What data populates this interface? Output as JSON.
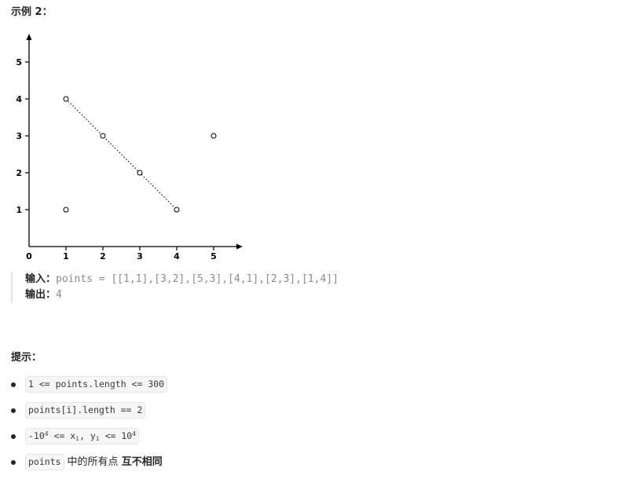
{
  "example": {
    "title": "示例 2：",
    "input_label": "输入：",
    "input_value": "points = [[1,1],[3,2],[5,3],[4,1],[2,3],[1,4]]",
    "output_label": "输出：",
    "output_value": "4"
  },
  "hints": {
    "title": "提示：",
    "items": [
      {
        "code": "1 <= points.length <= 300"
      },
      {
        "code": "points[i].length == 2"
      },
      {
        "code_parts": [
          "-10",
          "4",
          " <= x",
          "i",
          ", y",
          "i",
          " <= 10",
          "4"
        ]
      },
      {
        "code": "points",
        "text": "中的所有点",
        "strong": "互不相同"
      }
    ]
  },
  "chart_data": {
    "type": "scatter",
    "title": "",
    "xlabel": "",
    "ylabel": "",
    "xlim": [
      0,
      5.5
    ],
    "ylim": [
      0,
      5.5
    ],
    "x_ticks": [
      "0",
      "1",
      "2",
      "3",
      "4",
      "5"
    ],
    "y_ticks": [
      "1",
      "2",
      "3",
      "4",
      "5"
    ],
    "points": [
      [
        1,
        1
      ],
      [
        3,
        2
      ],
      [
        5,
        3
      ],
      [
        4,
        1
      ],
      [
        2,
        3
      ],
      [
        1,
        4
      ]
    ],
    "line": {
      "style": "dotted",
      "points": [
        [
          1,
          4
        ],
        [
          4,
          1
        ]
      ]
    },
    "grid": false
  }
}
